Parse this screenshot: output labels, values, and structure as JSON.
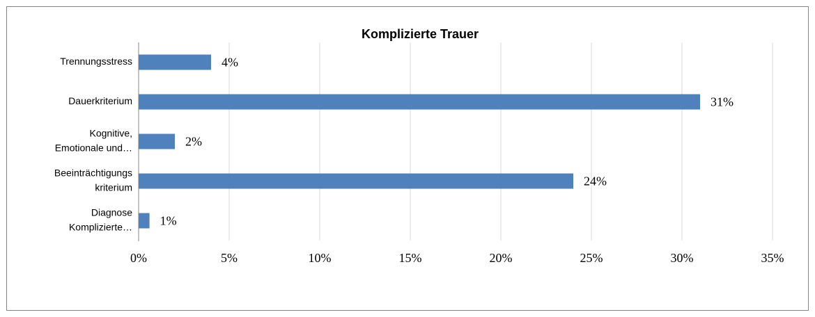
{
  "chart_data": {
    "type": "bar",
    "orientation": "horizontal",
    "title": "Komplizierte Trauer",
    "categories": [
      [
        "Trennungsstress"
      ],
      [
        "Dauerkriterium"
      ],
      [
        "Kognitive,",
        "Emotionale und…"
      ],
      [
        "Beeinträchtigungs",
        "kriterium"
      ],
      [
        "Diagnose",
        "Komplizierte…"
      ]
    ],
    "values": [
      4,
      31,
      2,
      24,
      0.6
    ],
    "value_labels": [
      "4%",
      "31%",
      "2%",
      "24%",
      "1%"
    ],
    "color": "#4f81bd",
    "xlim": [
      0,
      35
    ],
    "xticks": [
      {
        "value": 0,
        "label": "0%"
      },
      {
        "value": 5,
        "label": "5%"
      },
      {
        "value": 10,
        "label": "10%"
      },
      {
        "value": 15,
        "label": "15%"
      },
      {
        "value": 20,
        "label": "20%"
      },
      {
        "value": 25,
        "label": "25%"
      },
      {
        "value": 30,
        "label": "30%"
      },
      {
        "value": 35,
        "label": "35%"
      }
    ],
    "grid": true
  }
}
